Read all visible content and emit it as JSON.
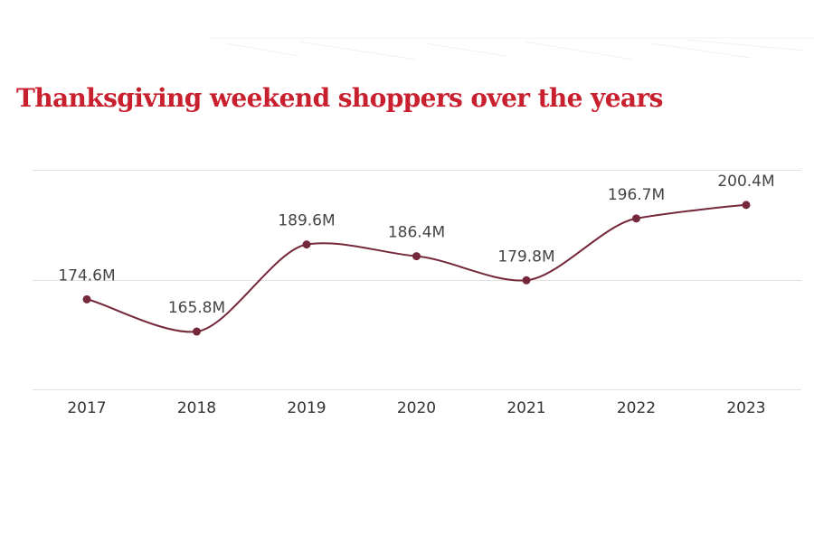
{
  "chart_data": {
    "type": "line",
    "title": "Thanksgiving weekend shoppers over the years",
    "categories": [
      "2017",
      "2018",
      "2019",
      "2020",
      "2021",
      "2022",
      "2023"
    ],
    "values": [
      174.6,
      165.8,
      189.6,
      186.4,
      179.8,
      196.7,
      200.4
    ],
    "data_labels": [
      "174.6M",
      "165.8M",
      "189.6M",
      "186.4M",
      "179.8M",
      "196.7M",
      "200.4M"
    ],
    "xlabel": "",
    "ylabel": "",
    "ylim": [
      150,
      210
    ],
    "gridlines": [
      150,
      180,
      210
    ],
    "grid": true,
    "legend": "none",
    "colors": {
      "title": "#c8202e",
      "series": "#74283a",
      "grid": "#e2e2e2",
      "text": "#444444"
    }
  }
}
